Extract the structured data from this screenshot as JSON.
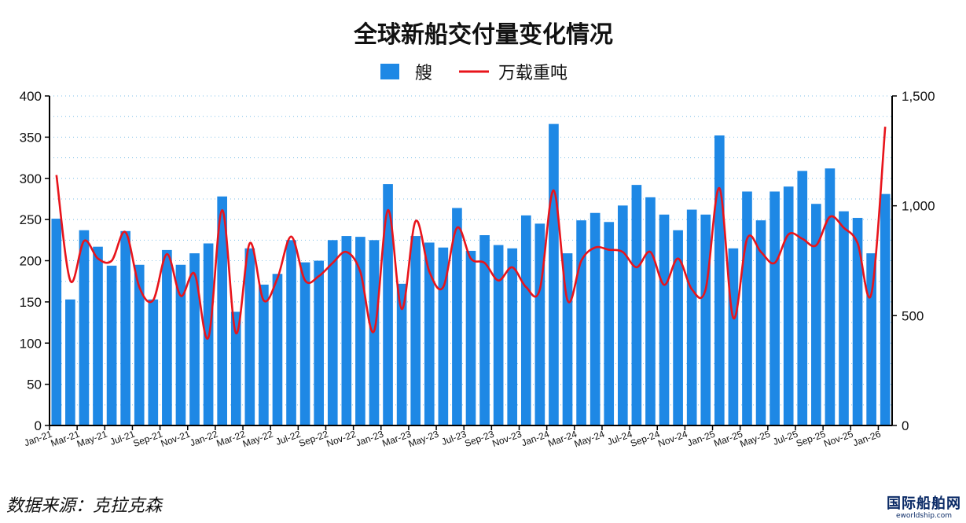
{
  "chart_data": {
    "type": "bar",
    "title": "全球新船交付量变化情况",
    "legend": {
      "placement": "top-center",
      "bar_label": "艘",
      "line_label": "万载重吨"
    },
    "y_left": {
      "min": 0,
      "max": 400,
      "step": 50,
      "ticks": [
        "0",
        "50",
        "100",
        "150",
        "200",
        "250",
        "300",
        "350",
        "400"
      ]
    },
    "y_right": {
      "min": 0,
      "max": 1500,
      "ticks": [
        "0",
        "500",
        "1,000",
        "1,500"
      ]
    },
    "grid": true,
    "colors": {
      "bar": "#1e88e5",
      "line": "#e8141b"
    },
    "categories": [
      "Jan-21",
      "Feb-21",
      "Mar-21",
      "Apr-21",
      "May-21",
      "Jun-21",
      "Jul-21",
      "Aug-21",
      "Sep-21",
      "Oct-21",
      "Nov-21",
      "Dec-21",
      "Jan-22",
      "Feb-22",
      "Mar-22",
      "Apr-22",
      "May-22",
      "Jun-22",
      "Jul-22",
      "Aug-22",
      "Sep-22",
      "Oct-22",
      "Nov-22",
      "Dec-22",
      "Jan-23",
      "Feb-23",
      "Mar-23",
      "Apr-23",
      "May-23",
      "Jun-23",
      "Jul-23",
      "Aug-23",
      "Sep-23",
      "Oct-23",
      "Nov-23",
      "Dec-23",
      "Jan-24",
      "Feb-24",
      "Mar-24",
      "Apr-24",
      "May-24",
      "Jun-24",
      "Jul-24",
      "Aug-24",
      "Sep-24",
      "Oct-24",
      "Nov-24",
      "Dec-24",
      "Jan-25",
      "Feb-25",
      "Mar-25",
      "Apr-25",
      "May-25",
      "Jun-25",
      "Jul-25",
      "Aug-25",
      "Sep-25",
      "Oct-25",
      "Nov-25",
      "Dec-25",
      "Jan-26"
    ],
    "x_tick_labels": [
      "Jan-21",
      "Mar-21",
      "May-21",
      "Jul-21",
      "Sep-21",
      "Nov-21",
      "Jan-22",
      "Mar-22",
      "May-22",
      "Jul-22",
      "Sep-22",
      "Nov-22",
      "Jan-23",
      "Mar-23",
      "May-23",
      "Jul-23",
      "Sep-23",
      "Nov-23",
      "Jan-24",
      "Mar-24",
      "May-24",
      "Jul-24",
      "Sep-24",
      "Nov-24",
      "Jan-25",
      "Mar-25",
      "May-25",
      "Jul-25",
      "Sep-25",
      "Nov-25",
      "Jan-26"
    ],
    "series": [
      {
        "name": "艘",
        "type": "bar",
        "axis": "left",
        "values": [
          251,
          153,
          237,
          217,
          194,
          236,
          195,
          153,
          213,
          195,
          209,
          221,
          278,
          138,
          215,
          171,
          184,
          225,
          198,
          200,
          225,
          230,
          229,
          225,
          293,
          172,
          230,
          222,
          216,
          264,
          212,
          231,
          219,
          215,
          255,
          245,
          366,
          209,
          249,
          258,
          247,
          267,
          292,
          277,
          256,
          237,
          262,
          256,
          352,
          215,
          284,
          249,
          284,
          290,
          309,
          269,
          312,
          260,
          252,
          209,
          281
        ]
      },
      {
        "name": "万载重吨",
        "type": "line",
        "axis": "right",
        "values": [
          1140,
          660,
          840,
          760,
          750,
          880,
          630,
          570,
          780,
          590,
          690,
          400,
          980,
          420,
          830,
          570,
          670,
          860,
          660,
          680,
          740,
          790,
          700,
          430,
          980,
          530,
          930,
          700,
          630,
          900,
          760,
          740,
          660,
          720,
          630,
          620,
          1070,
          570,
          750,
          810,
          800,
          790,
          720,
          790,
          640,
          760,
          620,
          620,
          1080,
          490,
          850,
          790,
          740,
          870,
          850,
          820,
          950,
          900,
          830,
          600,
          1360
        ]
      }
    ]
  },
  "source": "数据来源：克拉克森",
  "watermark": {
    "main": "国际船舶网",
    "sub": "eworldship.com"
  }
}
